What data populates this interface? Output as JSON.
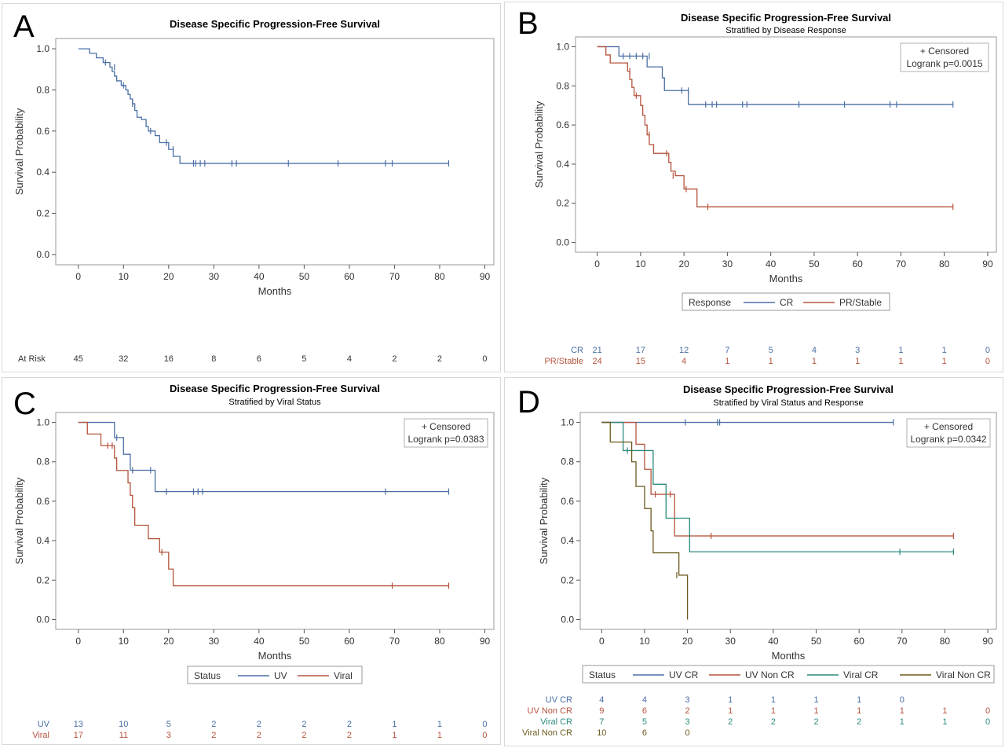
{
  "colors": {
    "blue": "#4a6fa5",
    "red": "#b5533c",
    "teal": "#2b8a7e",
    "brown": "#6b5a1e",
    "risk_dark": "#333333",
    "axis": "#333333"
  },
  "shared": {
    "xlabel": "Months",
    "ylabel": "Survival Probability",
    "xlim": [
      -5,
      92
    ],
    "ylim": [
      -0.05,
      1.05
    ],
    "xticks": [
      0,
      10,
      20,
      30,
      40,
      50,
      60,
      70,
      80,
      90
    ],
    "yticks": [
      0.0,
      0.2,
      0.4,
      0.6,
      0.8,
      1.0
    ],
    "risk_times": [
      0,
      10,
      20,
      30,
      40,
      50,
      60,
      70,
      80,
      90
    ]
  },
  "chart_data": [
    {
      "id": "A",
      "type": "line",
      "title": "Disease Specific Progression-Free Survival",
      "subtitle": "",
      "xlabel": "Months",
      "ylabel": "Survival Probability",
      "legend": null,
      "censor_note": "",
      "logrank": "",
      "risk_table": {
        "header": "At Risk",
        "rows": [
          {
            "label": "",
            "color": "risk_dark",
            "values": [
              "45",
              "32",
              "16",
              "8",
              "6",
              "5",
              "4",
              "2",
              "2",
              "0"
            ]
          }
        ]
      },
      "series": [
        {
          "name": "",
          "color": "blue",
          "steps": [
            [
              0,
              1.0
            ],
            [
              2.5,
              0.978
            ],
            [
              4,
              0.956
            ],
            [
              5.5,
              0.933
            ],
            [
              7,
              0.911
            ],
            [
              7.5,
              0.889
            ],
            [
              8,
              0.867
            ],
            [
              8.5,
              0.844
            ],
            [
              9.5,
              0.822
            ],
            [
              10.5,
              0.8
            ],
            [
              11,
              0.778
            ],
            [
              11.5,
              0.756
            ],
            [
              12,
              0.733
            ],
            [
              12.5,
              0.7
            ],
            [
              13,
              0.667
            ],
            [
              14,
              0.656
            ],
            [
              15,
              0.622
            ],
            [
              15.5,
              0.6
            ],
            [
              17,
              0.578
            ],
            [
              18,
              0.544
            ],
            [
              20,
              0.511
            ],
            [
              21,
              0.477
            ],
            [
              22.5,
              0.443
            ]
          ],
          "end": 82,
          "censored": [
            [
              6,
              0.933
            ],
            [
              8,
              0.911
            ],
            [
              10,
              0.822
            ],
            [
              12,
              0.733
            ],
            [
              16,
              0.6
            ],
            [
              19.5,
              0.544
            ],
            [
              21,
              0.511
            ],
            [
              25.5,
              0.443
            ],
            [
              26,
              0.443
            ],
            [
              27,
              0.443
            ],
            [
              28,
              0.443
            ],
            [
              34,
              0.443
            ],
            [
              35,
              0.443
            ],
            [
              46.5,
              0.443
            ],
            [
              57.5,
              0.443
            ],
            [
              68,
              0.443
            ],
            [
              69.5,
              0.443
            ],
            [
              82,
              0.443
            ]
          ]
        }
      ]
    },
    {
      "id": "B",
      "type": "line",
      "title": "Disease Specific Progression-Free Survival",
      "subtitle": "Stratified by Disease Response",
      "xlabel": "Months",
      "ylabel": "Survival Probability",
      "legend": {
        "title": "Response",
        "entries": [
          "CR",
          "PR/Stable"
        ]
      },
      "censor_note": "+ Censored",
      "logrank": "Logrank p=0.0015",
      "risk_table": {
        "header": "",
        "rows": [
          {
            "label": "CR",
            "color": "blue",
            "values": [
              "21",
              "17",
              "12",
              "7",
              "5",
              "4",
              "3",
              "1",
              "1",
              "0"
            ]
          },
          {
            "label": "PR/Stable",
            "color": "red",
            "values": [
              "24",
              "15",
              "4",
              "1",
              "1",
              "1",
              "1",
              "1",
              "1",
              "0"
            ]
          }
        ]
      },
      "series": [
        {
          "name": "CR",
          "color": "blue",
          "steps": [
            [
              0,
              1.0
            ],
            [
              5,
              0.952
            ],
            [
              11.5,
              0.897
            ],
            [
              15,
              0.841
            ],
            [
              15.5,
              0.776
            ],
            [
              21,
              0.705
            ]
          ],
          "end": 82,
          "censored": [
            [
              6,
              0.952
            ],
            [
              7.5,
              0.952
            ],
            [
              9,
              0.952
            ],
            [
              10.5,
              0.952
            ],
            [
              12,
              0.952
            ],
            [
              19.5,
              0.776
            ],
            [
              21,
              0.776
            ],
            [
              25,
              0.705
            ],
            [
              26.5,
              0.705
            ],
            [
              27.5,
              0.705
            ],
            [
              33.5,
              0.705
            ],
            [
              34.5,
              0.705
            ],
            [
              46.5,
              0.705
            ],
            [
              57,
              0.705
            ],
            [
              67.5,
              0.705
            ],
            [
              69,
              0.705
            ],
            [
              82,
              0.705
            ]
          ]
        },
        {
          "name": "PR/Stable",
          "color": "red",
          "steps": [
            [
              0,
              1.0
            ],
            [
              2,
              0.958
            ],
            [
              3,
              0.917
            ],
            [
              7,
              0.875
            ],
            [
              7.5,
              0.833
            ],
            [
              8,
              0.792
            ],
            [
              8.5,
              0.75
            ],
            [
              10,
              0.7
            ],
            [
              10.5,
              0.65
            ],
            [
              11,
              0.6
            ],
            [
              11.5,
              0.55
            ],
            [
              12,
              0.5
            ],
            [
              13,
              0.455
            ],
            [
              16.5,
              0.409
            ],
            [
              17,
              0.364
            ],
            [
              18,
              0.341
            ],
            [
              20,
              0.273
            ],
            [
              23,
              0.182
            ]
          ],
          "end": 82,
          "censored": [
            [
              7.5,
              0.875
            ],
            [
              9,
              0.75
            ],
            [
              12,
              0.55
            ],
            [
              16,
              0.455
            ],
            [
              17.5,
              0.341
            ],
            [
              20.5,
              0.273
            ],
            [
              25.5,
              0.182
            ],
            [
              82,
              0.182
            ]
          ]
        }
      ]
    },
    {
      "id": "C",
      "type": "line",
      "title": "Disease Specific Progression-Free Survival",
      "subtitle": "Stratified by Viral Status",
      "xlabel": "Months",
      "ylabel": "Survival Probability",
      "legend": {
        "title": "Status",
        "entries": [
          "UV",
          "Viral"
        ]
      },
      "censor_note": "+ Censored",
      "logrank": "Logrank p=0.0383",
      "risk_table": {
        "header": "",
        "rows": [
          {
            "label": "UV",
            "color": "blue",
            "values": [
              "13",
              "10",
              "5",
              "2",
              "2",
              "2",
              "2",
              "1",
              "1",
              "0"
            ]
          },
          {
            "label": "Viral",
            "color": "red",
            "values": [
              "17",
              "11",
              "3",
              "2",
              "2",
              "2",
              "2",
              "1",
              "1",
              "0"
            ]
          }
        ]
      },
      "series": [
        {
          "name": "UV",
          "color": "blue",
          "steps": [
            [
              0,
              1.0
            ],
            [
              8,
              0.923
            ],
            [
              10,
              0.838
            ],
            [
              11.5,
              0.757
            ],
            [
              17,
              0.649
            ]
          ],
          "end": 82,
          "censored": [
            [
              8.5,
              0.923
            ],
            [
              12,
              0.757
            ],
            [
              16,
              0.757
            ],
            [
              19.5,
              0.649
            ],
            [
              25.5,
              0.649
            ],
            [
              26.5,
              0.649
            ],
            [
              27.5,
              0.649
            ],
            [
              68,
              0.649
            ],
            [
              82,
              0.649
            ]
          ]
        },
        {
          "name": "Viral",
          "color": "red",
          "steps": [
            [
              0,
              1.0
            ],
            [
              2,
              0.941
            ],
            [
              5,
              0.882
            ],
            [
              8,
              0.819
            ],
            [
              8.5,
              0.756
            ],
            [
              11,
              0.693
            ],
            [
              11.5,
              0.63
            ],
            [
              12,
              0.567
            ],
            [
              12.5,
              0.478
            ],
            [
              15.5,
              0.41
            ],
            [
              18,
              0.341
            ],
            [
              20,
              0.256
            ],
            [
              21,
              0.171
            ]
          ],
          "end": 82,
          "censored": [
            [
              6.5,
              0.882
            ],
            [
              7.5,
              0.882
            ],
            [
              18.5,
              0.341
            ],
            [
              69.5,
              0.171
            ],
            [
              82,
              0.171
            ]
          ]
        }
      ]
    },
    {
      "id": "D",
      "type": "line",
      "title": "Disease Specific Progression-Free Survival",
      "subtitle": "Stratified by Viral Status and Response",
      "xlabel": "Months",
      "ylabel": "Survival Probability",
      "legend": {
        "title": "Status",
        "entries": [
          "UV CR",
          "UV Non CR",
          "Viral CR",
          "Viral Non CR"
        ]
      },
      "censor_note": "+ Censored",
      "logrank": "Logrank p=0.0342",
      "risk_table": {
        "header": "",
        "rows": [
          {
            "label": "UV CR",
            "color": "blue",
            "values": [
              "4",
              "4",
              "3",
              "1",
              "1",
              "1",
              "1",
              "0",
              "",
              ""
            ]
          },
          {
            "label": "UV Non CR",
            "color": "red",
            "values": [
              "9",
              "6",
              "2",
              "1",
              "1",
              "1",
              "1",
              "1",
              "1",
              "0"
            ]
          },
          {
            "label": "Viral CR",
            "color": "teal",
            "values": [
              "7",
              "5",
              "3",
              "2",
              "2",
              "2",
              "2",
              "1",
              "1",
              "0"
            ]
          },
          {
            "label": "Viral Non CR",
            "color": "brown",
            "values": [
              "10",
              "6",
              "0",
              "",
              "",
              "",
              "",
              "",
              "",
              ""
            ]
          }
        ]
      },
      "series": [
        {
          "name": "UV CR",
          "color": "blue",
          "steps": [
            [
              0,
              1.0
            ]
          ],
          "end": 68,
          "censored": [
            [
              19.5,
              1.0
            ],
            [
              27,
              1.0
            ],
            [
              27.5,
              1.0
            ],
            [
              68,
              1.0
            ]
          ]
        },
        {
          "name": "UV Non CR",
          "color": "red",
          "steps": [
            [
              0,
              1.0
            ],
            [
              8,
              0.889
            ],
            [
              10,
              0.762
            ],
            [
              11.5,
              0.635
            ],
            [
              17,
              0.424
            ]
          ],
          "end": 82,
          "censored": [
            [
              12.5,
              0.635
            ],
            [
              16,
              0.635
            ],
            [
              25.5,
              0.424
            ],
            [
              82,
              0.424
            ]
          ]
        },
        {
          "name": "Viral CR",
          "color": "teal",
          "steps": [
            [
              0,
              1.0
            ],
            [
              5,
              0.857
            ],
            [
              12,
              0.686
            ],
            [
              15,
              0.514
            ],
            [
              20.5,
              0.343
            ]
          ],
          "end": 82,
          "censored": [
            [
              6,
              0.857
            ],
            [
              69.5,
              0.343
            ],
            [
              82,
              0.343
            ]
          ]
        },
        {
          "name": "Viral Non CR",
          "color": "brown",
          "steps": [
            [
              0,
              1.0
            ],
            [
              2,
              0.9
            ],
            [
              7,
              0.8
            ],
            [
              8,
              0.675
            ],
            [
              10,
              0.563
            ],
            [
              11.5,
              0.45
            ],
            [
              12,
              0.338
            ],
            [
              18,
              0.225
            ],
            [
              20,
              0.0
            ]
          ],
          "end": 20,
          "censored": [
            [
              17.5,
              0.225
            ]
          ]
        }
      ]
    }
  ]
}
